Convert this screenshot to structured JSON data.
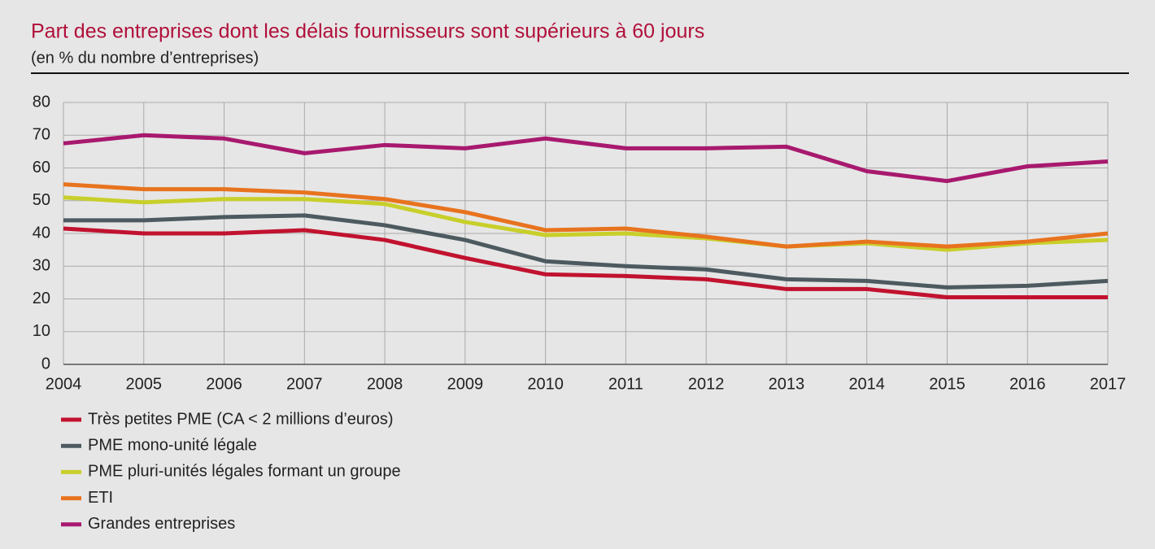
{
  "chart_data": {
    "type": "line",
    "title": "Part des entreprises dont les délais fournisseurs sont supérieurs à 60 jours",
    "subtitle": "(en % du nombre d’entreprises)",
    "x": [
      2004,
      2005,
      2006,
      2007,
      2008,
      2009,
      2010,
      2011,
      2012,
      2013,
      2014,
      2015,
      2016,
      2017
    ],
    "xlim": [
      2004,
      2017
    ],
    "xticks": [
      2004,
      2005,
      2006,
      2007,
      2008,
      2009,
      2010,
      2011,
      2012,
      2013,
      2014,
      2015,
      2016,
      2017
    ],
    "ylim": [
      0,
      80
    ],
    "yticks": [
      0,
      10,
      20,
      30,
      40,
      50,
      60,
      70,
      80
    ],
    "grid": true,
    "legend": "bottom-left",
    "series": [
      {
        "name": "Très petites PME (CA < 2 millions d’euros)",
        "color": "#c1122f",
        "values": [
          41.5,
          40,
          40,
          41,
          38,
          32.5,
          27.5,
          27,
          26,
          23,
          23,
          20.5,
          20.5,
          20.5
        ]
      },
      {
        "name": "PME mono-unité légale",
        "color": "#4d5a5f",
        "values": [
          44,
          44,
          45,
          45.5,
          42.5,
          38,
          31.5,
          30,
          29,
          26,
          25.5,
          23.5,
          24,
          25.5
        ]
      },
      {
        "name": "PME pluri-unités légales formant un groupe",
        "color": "#c8cf2a",
        "values": [
          51,
          49.5,
          50.5,
          50.5,
          49,
          43.5,
          39.5,
          40,
          38.5,
          36,
          37,
          35,
          37,
          38
        ]
      },
      {
        "name": "ETI",
        "color": "#e8731e",
        "values": [
          55,
          53.5,
          53.5,
          52.5,
          50.5,
          46.5,
          41,
          41.5,
          39,
          36,
          37.5,
          36,
          37.5,
          40
        ]
      },
      {
        "name": "Grandes entreprises",
        "color": "#a8196e",
        "values": [
          67.5,
          70,
          69,
          64.5,
          67,
          66,
          69,
          66,
          66,
          66.5,
          59,
          56,
          60.5,
          62
        ]
      }
    ]
  }
}
